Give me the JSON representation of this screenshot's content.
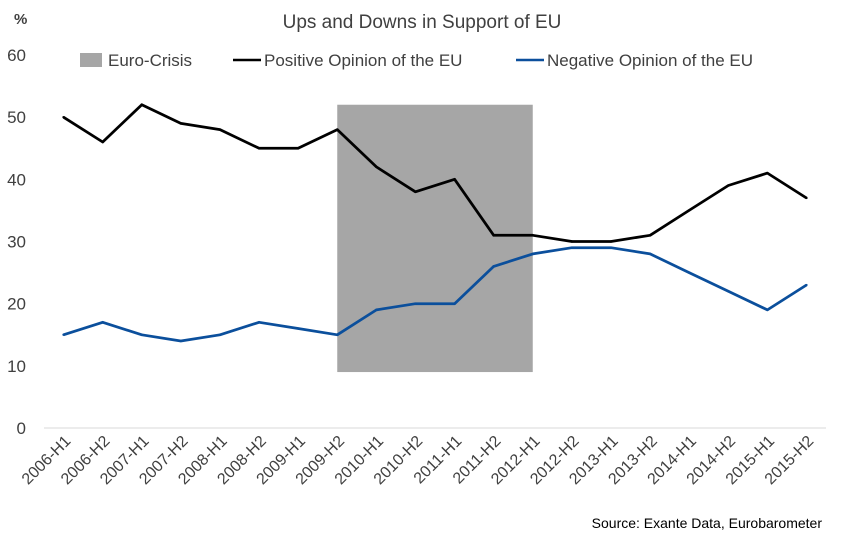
{
  "chart_data": {
    "type": "line",
    "title": "Ups and Downs in Support of EU",
    "ylabel": "%",
    "xlabel": "",
    "ylim": [
      0,
      60
    ],
    "yticks": [
      0,
      10,
      20,
      30,
      40,
      50,
      60
    ],
    "grid": false,
    "legend": "top",
    "categories": [
      "2006-H1",
      "2006-H2",
      "2007-H1",
      "2007-H2",
      "2008-H1",
      "2008-H2",
      "2009-H1",
      "2009-H2",
      "2010-H1",
      "2010-H2",
      "2011-H1",
      "2011-H2",
      "2012-H1",
      "2012-H2",
      "2013-H1",
      "2013-H2",
      "2014-H1",
      "2014-H2",
      "2015-H1",
      "2015-H2"
    ],
    "shaded_region": {
      "name": "Euro-Crisis",
      "from": "2009-H2",
      "to": "2012-H1",
      "y_from": 9,
      "y_to": 52,
      "color": "#a6a6a6"
    },
    "series": [
      {
        "name": "Positive Opinion of the EU",
        "color": "#000000",
        "values": [
          50,
          46,
          52,
          49,
          48,
          45,
          45,
          48,
          42,
          38,
          40,
          31,
          31,
          30,
          30,
          31,
          35,
          39,
          41,
          37
        ]
      },
      {
        "name": "Negative Opinion of the EU",
        "color": "#0b4f9c",
        "values": [
          15,
          17,
          15,
          14,
          15,
          17,
          16,
          15,
          19,
          20,
          20,
          26,
          28,
          29,
          29,
          28,
          25,
          22,
          19,
          23
        ]
      }
    ],
    "source": "Source: Exante Data, Eurobarometer"
  }
}
